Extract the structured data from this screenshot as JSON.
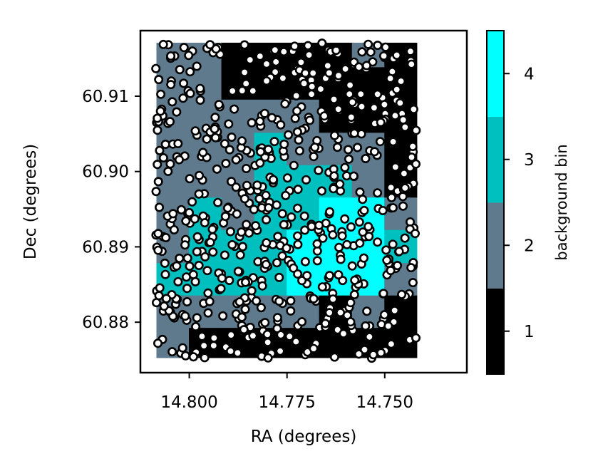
{
  "chart_data": {
    "type": "heatmap",
    "xlabel": "RA (degrees)",
    "ylabel": "Dec (degrees)",
    "xlim": [
      14.8125,
      14.729
    ],
    "ylim": [
      60.8733,
      60.9187
    ],
    "x_inverted": true,
    "x_ticks": [
      14.8,
      14.775,
      14.75
    ],
    "x_tick_labels": [
      "14.800",
      "14.775",
      "14.750"
    ],
    "y_ticks": [
      60.88,
      60.89,
      60.9,
      60.91
    ],
    "y_tick_labels": [
      "60.88",
      "60.89",
      "60.90",
      "60.91"
    ],
    "grid": false,
    "heatmap": {
      "ra_edges": [
        14.8084,
        14.8001,
        14.7918,
        14.7834,
        14.7751,
        14.7668,
        14.7584,
        14.7501,
        14.7418
      ],
      "dec_edges": [
        60.8753,
        60.8793,
        60.8836,
        60.8879,
        60.8923,
        60.8966,
        60.9009,
        60.9052,
        60.9096,
        60.9139,
        60.9171
      ],
      "bins_rows_bottom_to_top": [
        [
          2,
          1,
          1,
          1,
          1,
          1,
          1,
          1
        ],
        [
          2,
          2,
          2,
          2,
          2,
          1,
          2,
          1
        ],
        [
          3,
          3,
          3,
          3,
          4,
          4,
          4,
          2
        ],
        [
          2,
          3,
          3,
          3,
          4,
          4,
          4,
          3
        ],
        [
          2,
          3,
          2,
          3,
          3,
          4,
          4,
          2
        ],
        [
          2,
          2,
          2,
          3,
          3,
          3,
          2,
          1
        ],
        [
          2,
          2,
          2,
          3,
          2,
          2,
          2,
          1
        ],
        [
          2,
          2,
          2,
          2,
          2,
          1,
          1,
          1
        ],
        [
          2,
          2,
          1,
          1,
          1,
          1,
          1,
          1
        ],
        [
          2,
          2,
          1,
          1,
          1,
          1,
          2,
          1
        ]
      ]
    },
    "scatter": {
      "count": 640,
      "marker": "white circle with black edge",
      "ra_range": [
        14.7419,
        14.8086
      ],
      "dec_range": [
        60.8752,
        60.9172
      ]
    },
    "colorbar": {
      "label": "background bin",
      "ticks": [
        1,
        2,
        3,
        4
      ],
      "tick_labels": [
        "1",
        "2",
        "3",
        "4"
      ],
      "range": [
        0.5,
        4.5
      ],
      "colors": [
        "#000000",
        "#5f7a8c",
        "#00bfbf",
        "#00ffff"
      ]
    }
  }
}
